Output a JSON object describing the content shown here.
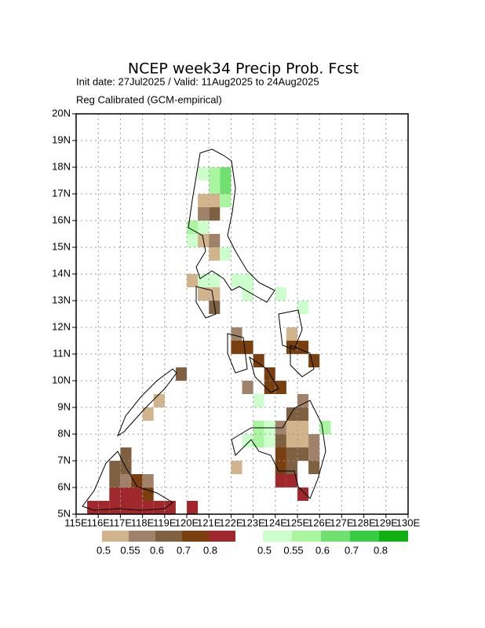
{
  "map_data": {
    "title": "NCEP week34 Precip Prob. Fcst",
    "subtitle": "Init date: 27Jul2025 / Valid: 11Aug2025 to 24Aug2025",
    "note": "Reg Calibrated (GCM-empirical)",
    "xlim": [
      115,
      130
    ],
    "ylim": [
      5,
      20
    ],
    "cell_size": 0.5,
    "xticks": [
      {
        "value": 115,
        "label": "115E"
      },
      {
        "value": 116,
        "label": "116E"
      },
      {
        "value": 117,
        "label": "117E"
      },
      {
        "value": 118,
        "label": "118E"
      },
      {
        "value": 119,
        "label": "119E"
      },
      {
        "value": 120,
        "label": "120E"
      },
      {
        "value": 121,
        "label": "121E"
      },
      {
        "value": 122,
        "label": "122E"
      },
      {
        "value": 123,
        "label": "123E"
      },
      {
        "value": 124,
        "label": "124E"
      },
      {
        "value": 125,
        "label": "125E"
      },
      {
        "value": 126,
        "label": "126E"
      },
      {
        "value": 127,
        "label": "127E"
      },
      {
        "value": 128,
        "label": "128E"
      },
      {
        "value": 129,
        "label": "129E"
      },
      {
        "value": 130,
        "label": "130E"
      }
    ],
    "yticks": [
      {
        "value": 5,
        "label": "5N"
      },
      {
        "value": 6,
        "label": "6N"
      },
      {
        "value": 7,
        "label": "7N"
      },
      {
        "value": 8,
        "label": "8N"
      },
      {
        "value": 9,
        "label": "9N"
      },
      {
        "value": 10,
        "label": "10N"
      },
      {
        "value": 11,
        "label": "11N"
      },
      {
        "value": 12,
        "label": "12N"
      },
      {
        "value": 13,
        "label": "13N"
      },
      {
        "value": 14,
        "label": "14N"
      },
      {
        "value": 15,
        "label": "15N"
      },
      {
        "value": 16,
        "label": "16N"
      },
      {
        "value": 17,
        "label": "17N"
      },
      {
        "value": 18,
        "label": "18N"
      },
      {
        "value": 19,
        "label": "19N"
      },
      {
        "value": 20,
        "label": "20N"
      }
    ],
    "grid": true,
    "dry_legend": {
      "colors": [
        "#d2b48c",
        "#a0826a",
        "#7f6040",
        "#7a3f0f",
        "#a0282c"
      ],
      "labels": [
        "0.5",
        "0.55",
        "0.6",
        "0.7",
        "0.8"
      ]
    },
    "wet_legend": {
      "colors": [
        "#ccffcc",
        "#aaf5a0",
        "#70e070",
        "#38cc44",
        "#10b010"
      ],
      "labels": [
        "0.5",
        "0.55",
        "0.6",
        "0.7",
        "0.8"
      ]
    },
    "wet_cells": [
      [
        120.5,
        17.5,
        0
      ],
      [
        121,
        17.5,
        1
      ],
      [
        121.5,
        17.5,
        2
      ],
      [
        121,
        17,
        1
      ],
      [
        121.5,
        17,
        2
      ],
      [
        121.5,
        16.5,
        1
      ],
      [
        120,
        15.5,
        1
      ],
      [
        120.5,
        15.5,
        0
      ],
      [
        120,
        15,
        0
      ],
      [
        121.5,
        14.5,
        0
      ],
      [
        120.5,
        13.5,
        0
      ],
      [
        121,
        13.5,
        0
      ],
      [
        122,
        13.5,
        0
      ],
      [
        122.5,
        13.5,
        0
      ],
      [
        122.5,
        13,
        0
      ],
      [
        124,
        13,
        0
      ],
      [
        125,
        12.5,
        0
      ],
      [
        123,
        8,
        1
      ],
      [
        123.5,
        8,
        0
      ],
      [
        122.5,
        7.5,
        0
      ],
      [
        123,
        7.5,
        1
      ],
      [
        123.5,
        7.5,
        0
      ],
      [
        126,
        8,
        1
      ],
      [
        123,
        9,
        0
      ]
    ],
    "dry_cells": [
      [
        120.5,
        16.5,
        0
      ],
      [
        121,
        16.5,
        0
      ],
      [
        120.5,
        16,
        1
      ],
      [
        121,
        16,
        2
      ],
      [
        120.5,
        15,
        0
      ],
      [
        121,
        14.5,
        0
      ],
      [
        121,
        15,
        1
      ],
      [
        120,
        13.5,
        0
      ],
      [
        120.5,
        13,
        0
      ],
      [
        121,
        13,
        0
      ],
      [
        121,
        12.5,
        2
      ],
      [
        122,
        11.5,
        1
      ],
      [
        122,
        11,
        3
      ],
      [
        122.5,
        11,
        3
      ],
      [
        123,
        10.5,
        3
      ],
      [
        123.5,
        10,
        3
      ],
      [
        122.5,
        9.5,
        1
      ],
      [
        123.5,
        9.5,
        3
      ],
      [
        124,
        9.5,
        3
      ],
      [
        124.5,
        11.5,
        0
      ],
      [
        124.5,
        11,
        3
      ],
      [
        125,
        11,
        3
      ],
      [
        125.5,
        10.5,
        3
      ],
      [
        125,
        9,
        1
      ],
      [
        124.5,
        8.5,
        2
      ],
      [
        125,
        8.5,
        2
      ],
      [
        124.5,
        8,
        0
      ],
      [
        125,
        8,
        0
      ],
      [
        124,
        8,
        1
      ],
      [
        124,
        7.5,
        2
      ],
      [
        124.5,
        7.5,
        0
      ],
      [
        125,
        7.5,
        0
      ],
      [
        125.5,
        7.5,
        1
      ],
      [
        124,
        7,
        3
      ],
      [
        124.5,
        7,
        2
      ],
      [
        125,
        7,
        2
      ],
      [
        125.5,
        7,
        1
      ],
      [
        124,
        6.5,
        3
      ],
      [
        124.5,
        6.5,
        2
      ],
      [
        125.5,
        6.5,
        2
      ],
      [
        124,
        6,
        4
      ],
      [
        124.5,
        6,
        4
      ],
      [
        125,
        5.5,
        4
      ],
      [
        122,
        6.5,
        0
      ],
      [
        119.5,
        10,
        2
      ],
      [
        118.5,
        9,
        0
      ],
      [
        118,
        8.5,
        0
      ],
      [
        116.5,
        6,
        2
      ],
      [
        117,
        6,
        1
      ],
      [
        117,
        6.5,
        2
      ],
      [
        116.5,
        6.5,
        2
      ],
      [
        117,
        7,
        2
      ],
      [
        116.5,
        5.5,
        4
      ],
      [
        117,
        5.5,
        4
      ],
      [
        117.5,
        5.5,
        4
      ],
      [
        117.5,
        6,
        3
      ],
      [
        118,
        5.5,
        3
      ],
      [
        118,
        6,
        1
      ],
      [
        115.5,
        5,
        4
      ],
      [
        116,
        5,
        4
      ],
      [
        116.5,
        5,
        4
      ],
      [
        117,
        5,
        4
      ],
      [
        117.5,
        5,
        4
      ],
      [
        118,
        5,
        4
      ],
      [
        118.5,
        5,
        4
      ],
      [
        119,
        5,
        4
      ],
      [
        120,
        5,
        4
      ]
    ]
  }
}
